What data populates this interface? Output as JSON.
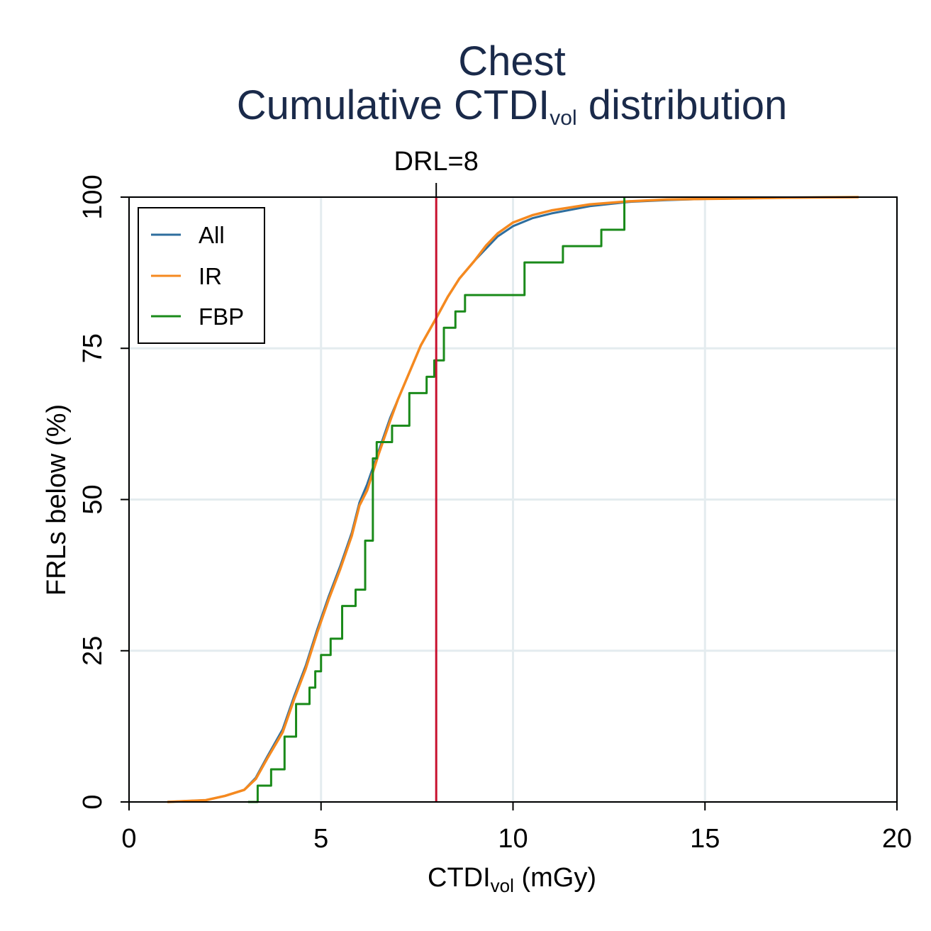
{
  "chart_data": {
    "type": "line",
    "title": "Chest",
    "subtitle": {
      "pre": "Cumulative CTDI",
      "sub": "vol",
      "post": " distribution"
    },
    "xlabel": {
      "pre": "CTDI",
      "sub": "vol",
      "post": " (mGy)"
    },
    "ylabel": "FRLs below (%)",
    "xlim": [
      0,
      20
    ],
    "ylim": [
      0,
      100
    ],
    "x_ticks": [
      "0",
      "5",
      "10",
      "15",
      "20"
    ],
    "y_ticks": [
      "0",
      "25",
      "50",
      "75",
      "100"
    ],
    "grid": true,
    "legend_position": "top-left",
    "reference_line": {
      "x": 8,
      "label": "DRL=8",
      "color": "#c8102e"
    },
    "series": [
      {
        "name": "All",
        "color": "#2e6e9e",
        "x": [
          1.0,
          2.0,
          2.5,
          3.0,
          3.3,
          3.6,
          4.0,
          4.3,
          4.6,
          4.9,
          5.2,
          5.5,
          5.8,
          6.0,
          6.2,
          6.5,
          6.8,
          7.0,
          7.3,
          7.6,
          8.0,
          8.3,
          8.6,
          9.0,
          9.3,
          9.6,
          10.0,
          10.5,
          11.0,
          12.0,
          13.0,
          14.0,
          15.0,
          16.0,
          17.0,
          19.0
        ],
        "y": [
          0,
          0.3,
          1.0,
          2.0,
          4.0,
          7.5,
          12.0,
          17.5,
          22.5,
          28.5,
          34.0,
          39.0,
          44.5,
          49.5,
          52.5,
          58.0,
          63.5,
          66.5,
          71.0,
          75.5,
          80.0,
          83.5,
          86.5,
          89.5,
          91.5,
          93.5,
          95.2,
          96.5,
          97.3,
          98.5,
          99.2,
          99.5,
          99.7,
          99.8,
          99.9,
          100
        ]
      },
      {
        "name": "IR",
        "color": "#f5891f",
        "x": [
          1.0,
          2.0,
          2.5,
          3.0,
          3.3,
          3.6,
          4.0,
          4.3,
          4.6,
          4.9,
          5.2,
          5.5,
          5.8,
          6.0,
          6.2,
          6.5,
          6.8,
          7.0,
          7.3,
          7.6,
          8.0,
          8.3,
          8.6,
          9.0,
          9.3,
          9.6,
          10.0,
          10.5,
          11.0,
          12.0,
          13.0,
          14.0,
          15.0,
          16.0,
          17.0,
          19.0
        ],
        "y": [
          0,
          0.3,
          1.0,
          2.0,
          3.8,
          7.2,
          11.5,
          17.0,
          22.0,
          28.0,
          33.5,
          38.5,
          44.0,
          49.0,
          51.5,
          57.5,
          63.0,
          66.5,
          71.0,
          75.5,
          80.0,
          83.5,
          86.5,
          89.5,
          92.0,
          94.0,
          95.8,
          97.0,
          97.8,
          98.8,
          99.3,
          99.6,
          99.7,
          99.8,
          99.9,
          100
        ]
      },
      {
        "name": "FBP",
        "color": "#1a8a1a",
        "step": true,
        "x": [
          3.1,
          3.35,
          3.7,
          4.05,
          4.35,
          4.7,
          4.85,
          5.0,
          5.25,
          5.55,
          5.9,
          6.15,
          6.35,
          6.45,
          6.85,
          7.3,
          7.75,
          7.95,
          8.2,
          8.5,
          8.75,
          10.3,
          11.3,
          12.3,
          12.9
        ],
        "y": [
          0,
          2.7,
          5.4,
          10.8,
          16.2,
          18.9,
          21.6,
          24.3,
          27.0,
          32.4,
          35.1,
          43.2,
          56.8,
          59.5,
          62.2,
          67.6,
          70.3,
          73.0,
          78.4,
          81.1,
          83.8,
          89.2,
          91.9,
          94.6,
          97.3
        ],
        "final": 100
      }
    ]
  }
}
